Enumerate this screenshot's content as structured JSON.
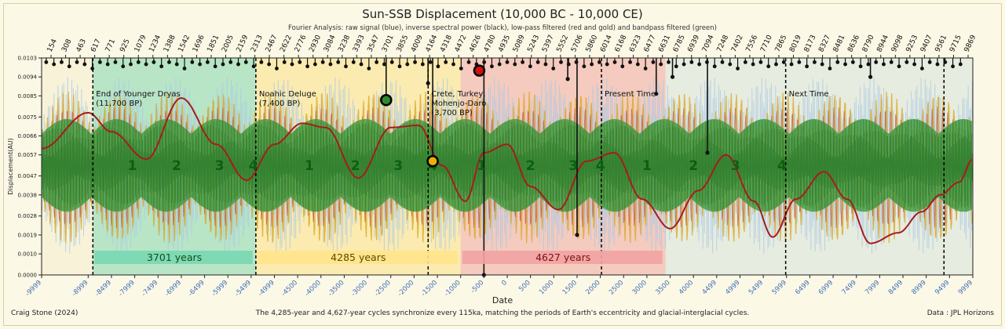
{
  "figure": {
    "title": "Sun-SSB Displacement (10,000 BC - 10,000 CE)",
    "subtitle": "Fourier Analysis: raw signal (blue), inverse spectral power (black), low-pass filtered (red and gold) and bandpass filtered (green)",
    "author": "Craig Stone (2024)",
    "caption": "The 4,285-year and 4,627-year cycles synchronize every 115ka, matching the periods of Earth's eccentricity and glacial-interglacial cycles.",
    "source": "Data : JPL Horizons"
  },
  "colors": {
    "raw": "#a9c8e6",
    "gold": "#d9a520",
    "red_filtered": "#b23a3a",
    "low_pass": "#a61c1c",
    "bandpass": "#3f9a3c",
    "inverse": "#111111",
    "era1": "#79d7b3",
    "era2": "#ffe48a",
    "era3": "#f2a3a3",
    "era4": "#c7e3ee",
    "tick_blue": "#3f6fb5",
    "cycle_text": "#0d5e13"
  },
  "chart_data": {
    "type": "line",
    "title": "Sun-SSB Displacement (10,000 BC - 10,000 CE)",
    "xlabel": "Date",
    "ylabel": "Displacement(AU)",
    "xlim": [
      -9999,
      9999
    ],
    "ylim": [
      0.0,
      0.0103
    ],
    "x_ticks": [
      -9999,
      -8999,
      -8499,
      -7999,
      -7499,
      -6999,
      -6499,
      -5999,
      -5499,
      -4999,
      -4500,
      -4000,
      -3500,
      -3000,
      -2500,
      -2000,
      -1500,
      -1000,
      -500,
      0,
      500,
      1000,
      1500,
      2000,
      2500,
      3000,
      3500,
      4000,
      4499,
      4999,
      5499,
      5999,
      6499,
      6999,
      7499,
      7999,
      8499,
      8999,
      9499,
      9999
    ],
    "y_ticks": [
      "0.0000",
      "0.0010",
      "0.0019",
      "0.0028",
      "0.0038",
      "0.0047",
      "0.0057",
      "0.0066",
      "0.0075",
      "0.0085",
      "0.0094",
      "0.0103"
    ],
    "top_period_ticks": [
      154,
      308,
      463,
      617,
      771,
      925,
      1079,
      1234,
      1388,
      1542,
      1696,
      1851,
      2005,
      2159,
      2313,
      2467,
      2622,
      2776,
      2930,
      3084,
      3238,
      3393,
      3547,
      3701,
      3855,
      4009,
      4164,
      4318,
      4472,
      4626,
      4780,
      4935,
      5089,
      5243,
      5397,
      5552,
      5706,
      5860,
      6014,
      6168,
      6323,
      6477,
      6631,
      6785,
      6939,
      7094,
      7248,
      7402,
      7556,
      7710,
      7865,
      8019,
      8173,
      8327,
      8481,
      8636,
      8790,
      8944,
      9098,
      9253,
      9407,
      9561,
      9715,
      9869
    ],
    "events": [
      {
        "x": -8898,
        "label": "End of Younger Dryas\n(11,700 BP)"
      },
      {
        "x": -5398,
        "label": "Noahic Deluge\n(7,400 BP)"
      },
      {
        "x": -1698,
        "label": "Crete, Turkey,\nMohenjo-Daro\n(3,700 BP)"
      },
      {
        "x": 2024,
        "label": "Present Time"
      },
      {
        "x": 5980,
        "label": "Next Time"
      },
      {
        "x": 9380,
        "label": ""
      }
    ],
    "eras": [
      {
        "x0": -8898,
        "x1": -5398,
        "label": "3701 years"
      },
      {
        "x0": -5398,
        "x1": -1000,
        "label": "4285 years"
      },
      {
        "x0": -1000,
        "x1": 3400,
        "label": "4627 years"
      }
    ],
    "cycle_labels": [
      {
        "x": -8050,
        "label": "1"
      },
      {
        "x": -7100,
        "label": "2"
      },
      {
        "x": -6180,
        "label": "3"
      },
      {
        "x": -5450,
        "label": "4"
      },
      {
        "x": -4250,
        "label": "1"
      },
      {
        "x": -3260,
        "label": "2"
      },
      {
        "x": -2340,
        "label": "3"
      },
      {
        "x": -1600,
        "label": "4"
      },
      {
        "x": -550,
        "label": "1"
      },
      {
        "x": 500,
        "label": "2"
      },
      {
        "x": 1420,
        "label": "3"
      },
      {
        "x": 2000,
        "label": "4"
      },
      {
        "x": 3000,
        "label": "1"
      },
      {
        "x": 4000,
        "label": "2"
      },
      {
        "x": 4900,
        "label": "3"
      },
      {
        "x": 5900,
        "label": "4"
      }
    ],
    "markers": [
      {
        "x": -2600,
        "y": 0.0083,
        "color": "#2f8a2f"
      },
      {
        "x": -1600,
        "y": 0.0054,
        "color": "#e8b000"
      },
      {
        "x": -600,
        "y": 0.0097,
        "color": "#d01010"
      }
    ],
    "series": [
      {
        "name": "raw signal",
        "style": "raw"
      },
      {
        "name": "low-pass filtered",
        "style": "low_pass"
      },
      {
        "name": "bandpass filtered",
        "style": "bandpass"
      },
      {
        "name": "inverse spectral power",
        "style": "inverse"
      }
    ],
    "low_pass_curve": {
      "x": [
        -9999,
        -9000,
        -8500,
        -7750,
        -7000,
        -6250,
        -5600,
        -5000,
        -4400,
        -3900,
        -3200,
        -2500,
        -1900,
        -1400,
        -900,
        -500,
        0,
        500,
        1100,
        1700,
        2300,
        2900,
        3500,
        4100,
        4700,
        5300,
        5700,
        6200,
        6800,
        7300,
        7800,
        8400,
        8900,
        9300,
        9700,
        9999
      ],
      "y": [
        0.006,
        0.0077,
        0.0068,
        0.0055,
        0.0084,
        0.0062,
        0.0045,
        0.0062,
        0.0072,
        0.007,
        0.0046,
        0.007,
        0.0071,
        0.0052,
        0.0035,
        0.0058,
        0.0062,
        0.0042,
        0.0031,
        0.0054,
        0.0058,
        0.0036,
        0.0022,
        0.004,
        0.0057,
        0.0035,
        0.0018,
        0.0036,
        0.0049,
        0.0036,
        0.0015,
        0.002,
        0.003,
        0.0038,
        0.0044,
        0.0055
      ]
    }
  }
}
